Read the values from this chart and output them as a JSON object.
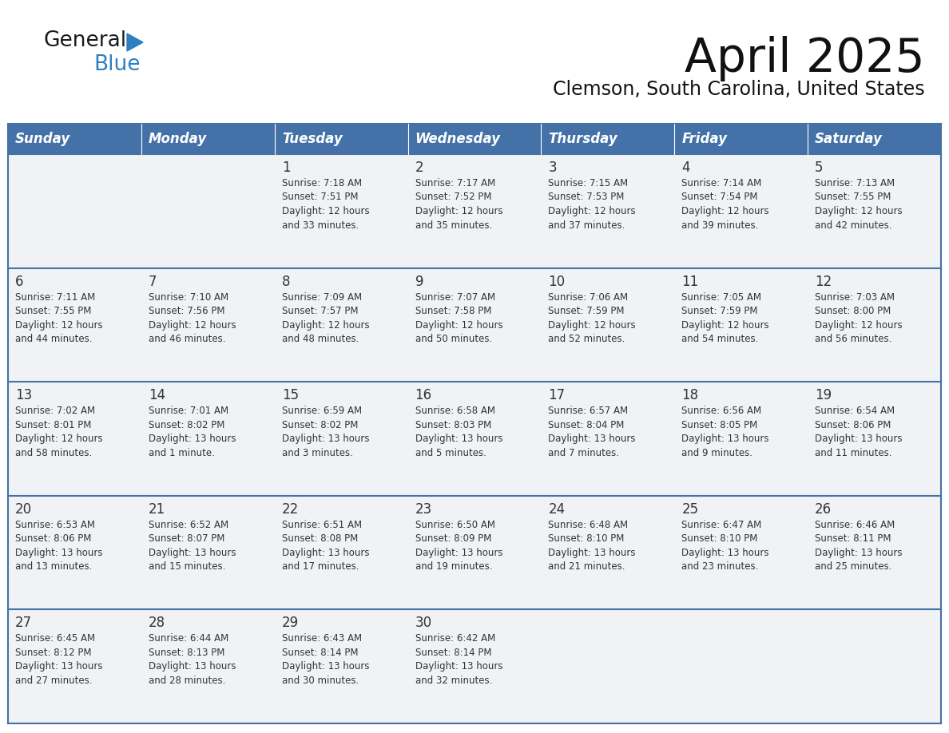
{
  "title": "April 2025",
  "subtitle": "Clemson, South Carolina, United States",
  "header_bg": "#4472a8",
  "header_text_color": "#ffffff",
  "cell_bg": "#f0f2f5",
  "row_separator_color": "#4472a8",
  "day_headers": [
    "Sunday",
    "Monday",
    "Tuesday",
    "Wednesday",
    "Thursday",
    "Friday",
    "Saturday"
  ],
  "days": [
    {
      "day": null,
      "text": ""
    },
    {
      "day": null,
      "text": ""
    },
    {
      "day": 1,
      "text": "Sunrise: 7:18 AM\nSunset: 7:51 PM\nDaylight: 12 hours\nand 33 minutes."
    },
    {
      "day": 2,
      "text": "Sunrise: 7:17 AM\nSunset: 7:52 PM\nDaylight: 12 hours\nand 35 minutes."
    },
    {
      "day": 3,
      "text": "Sunrise: 7:15 AM\nSunset: 7:53 PM\nDaylight: 12 hours\nand 37 minutes."
    },
    {
      "day": 4,
      "text": "Sunrise: 7:14 AM\nSunset: 7:54 PM\nDaylight: 12 hours\nand 39 minutes."
    },
    {
      "day": 5,
      "text": "Sunrise: 7:13 AM\nSunset: 7:55 PM\nDaylight: 12 hours\nand 42 minutes."
    },
    {
      "day": 6,
      "text": "Sunrise: 7:11 AM\nSunset: 7:55 PM\nDaylight: 12 hours\nand 44 minutes."
    },
    {
      "day": 7,
      "text": "Sunrise: 7:10 AM\nSunset: 7:56 PM\nDaylight: 12 hours\nand 46 minutes."
    },
    {
      "day": 8,
      "text": "Sunrise: 7:09 AM\nSunset: 7:57 PM\nDaylight: 12 hours\nand 48 minutes."
    },
    {
      "day": 9,
      "text": "Sunrise: 7:07 AM\nSunset: 7:58 PM\nDaylight: 12 hours\nand 50 minutes."
    },
    {
      "day": 10,
      "text": "Sunrise: 7:06 AM\nSunset: 7:59 PM\nDaylight: 12 hours\nand 52 minutes."
    },
    {
      "day": 11,
      "text": "Sunrise: 7:05 AM\nSunset: 7:59 PM\nDaylight: 12 hours\nand 54 minutes."
    },
    {
      "day": 12,
      "text": "Sunrise: 7:03 AM\nSunset: 8:00 PM\nDaylight: 12 hours\nand 56 minutes."
    },
    {
      "day": 13,
      "text": "Sunrise: 7:02 AM\nSunset: 8:01 PM\nDaylight: 12 hours\nand 58 minutes."
    },
    {
      "day": 14,
      "text": "Sunrise: 7:01 AM\nSunset: 8:02 PM\nDaylight: 13 hours\nand 1 minute."
    },
    {
      "day": 15,
      "text": "Sunrise: 6:59 AM\nSunset: 8:02 PM\nDaylight: 13 hours\nand 3 minutes."
    },
    {
      "day": 16,
      "text": "Sunrise: 6:58 AM\nSunset: 8:03 PM\nDaylight: 13 hours\nand 5 minutes."
    },
    {
      "day": 17,
      "text": "Sunrise: 6:57 AM\nSunset: 8:04 PM\nDaylight: 13 hours\nand 7 minutes."
    },
    {
      "day": 18,
      "text": "Sunrise: 6:56 AM\nSunset: 8:05 PM\nDaylight: 13 hours\nand 9 minutes."
    },
    {
      "day": 19,
      "text": "Sunrise: 6:54 AM\nSunset: 8:06 PM\nDaylight: 13 hours\nand 11 minutes."
    },
    {
      "day": 20,
      "text": "Sunrise: 6:53 AM\nSunset: 8:06 PM\nDaylight: 13 hours\nand 13 minutes."
    },
    {
      "day": 21,
      "text": "Sunrise: 6:52 AM\nSunset: 8:07 PM\nDaylight: 13 hours\nand 15 minutes."
    },
    {
      "day": 22,
      "text": "Sunrise: 6:51 AM\nSunset: 8:08 PM\nDaylight: 13 hours\nand 17 minutes."
    },
    {
      "day": 23,
      "text": "Sunrise: 6:50 AM\nSunset: 8:09 PM\nDaylight: 13 hours\nand 19 minutes."
    },
    {
      "day": 24,
      "text": "Sunrise: 6:48 AM\nSunset: 8:10 PM\nDaylight: 13 hours\nand 21 minutes."
    },
    {
      "day": 25,
      "text": "Sunrise: 6:47 AM\nSunset: 8:10 PM\nDaylight: 13 hours\nand 23 minutes."
    },
    {
      "day": 26,
      "text": "Sunrise: 6:46 AM\nSunset: 8:11 PM\nDaylight: 13 hours\nand 25 minutes."
    },
    {
      "day": 27,
      "text": "Sunrise: 6:45 AM\nSunset: 8:12 PM\nDaylight: 13 hours\nand 27 minutes."
    },
    {
      "day": 28,
      "text": "Sunrise: 6:44 AM\nSunset: 8:13 PM\nDaylight: 13 hours\nand 28 minutes."
    },
    {
      "day": 29,
      "text": "Sunrise: 6:43 AM\nSunset: 8:14 PM\nDaylight: 13 hours\nand 30 minutes."
    },
    {
      "day": 30,
      "text": "Sunrise: 6:42 AM\nSunset: 8:14 PM\nDaylight: 13 hours\nand 32 minutes."
    },
    {
      "day": null,
      "text": ""
    },
    {
      "day": null,
      "text": ""
    },
    {
      "day": null,
      "text": ""
    }
  ],
  "logo_text1": "General",
  "logo_text2": "Blue",
  "logo_text1_color": "#1a1a1a",
  "logo_text2_color": "#2e7fc1",
  "triangle_color": "#2e7fc1",
  "text_color": "#333333",
  "day_num_color": "#333333",
  "title_color": "#111111",
  "subtitle_color": "#111111"
}
